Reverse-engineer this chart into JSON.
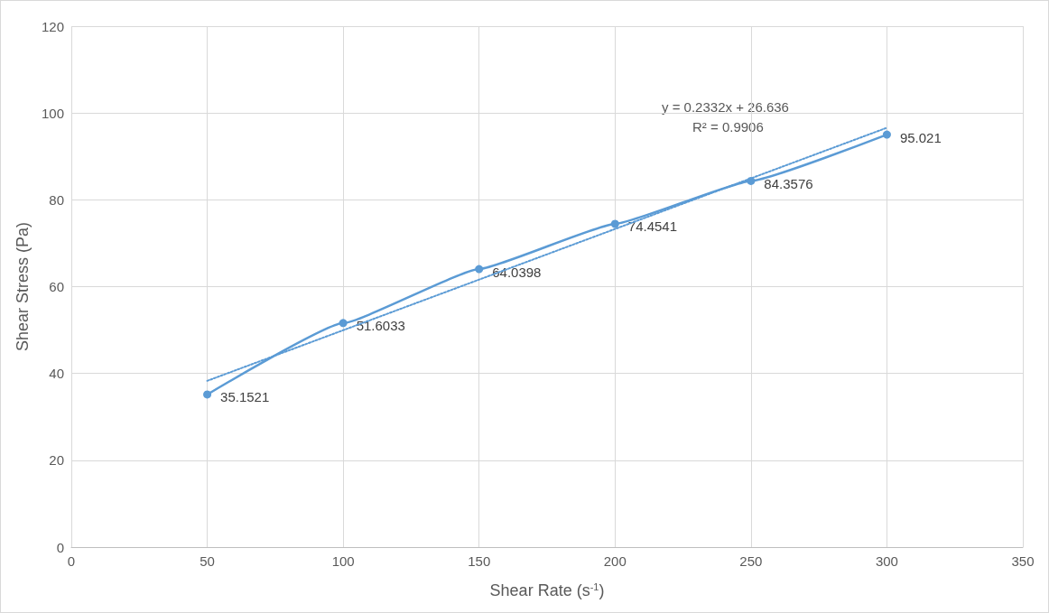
{
  "chart_data": {
    "type": "line",
    "xlabel": "Shear Rate (s$^{-1}$)",
    "ylabel": "Shear Stress (Pa)",
    "x": [
      50,
      100,
      150,
      200,
      250,
      300
    ],
    "series": [
      {
        "color": "#5b9bd5",
        "values": [
          35.1521,
          51.6033,
          64.0398,
          74.4541,
          84.3576,
          95.021
        ],
        "value_labels": [
          "35.1521",
          "51.6033",
          "64.0398",
          "74.4541",
          "84.3576",
          "95.021"
        ],
        "marker": "circle",
        "line_style": "solid"
      },
      {
        "type": "line",
        "color": "#5b9bd5",
        "x": [
          50,
          300
        ],
        "values": [
          38.3,
          96.6
        ],
        "marker": "none",
        "line_style": "dotted"
      }
    ],
    "annotations": [
      "y = 0.2332x + 26.636",
      "R² = 0.9906"
    ],
    "xlim": [
      0,
      350
    ],
    "xticks": [
      0,
      50,
      100,
      150,
      200,
      250,
      300,
      350
    ],
    "ylim": [
      0,
      120
    ],
    "yticks": [
      0,
      20,
      40,
      60,
      80,
      100,
      120
    ],
    "grid": true
  }
}
